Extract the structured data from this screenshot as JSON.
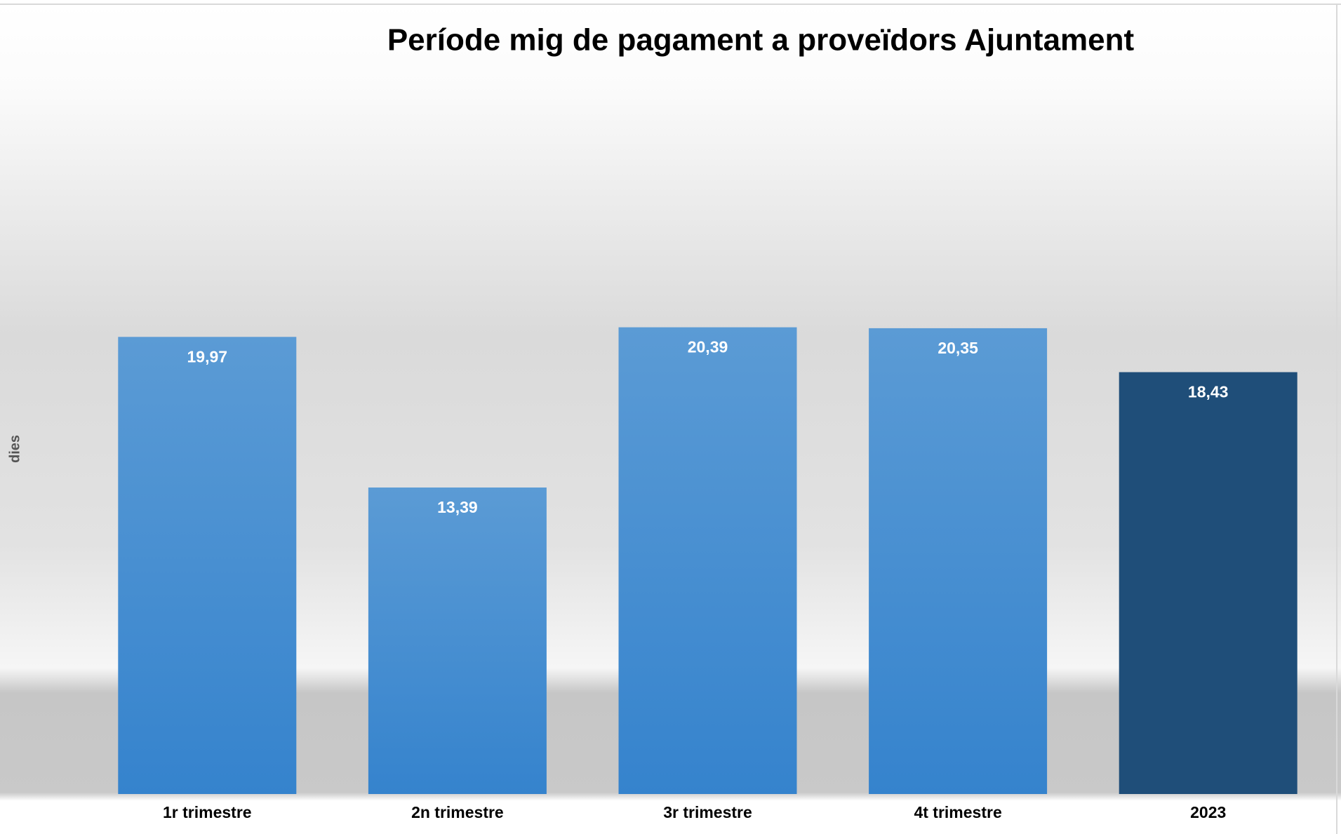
{
  "chart_data": {
    "type": "bar",
    "title": "Període mig de pagament a proveïdors Ajuntament",
    "y_label": "dies",
    "categories": [
      "1r trimestre",
      "2n trimestre",
      "3r trimestre",
      "4t trimestre",
      "2023"
    ],
    "values": [
      19.97,
      13.39,
      20.39,
      20.35,
      18.43
    ],
    "value_labels": [
      "19,97",
      "13,39",
      "20,39",
      "20,35",
      "18,43"
    ],
    "colors": [
      "#4a8fd4",
      "#4a8fd4",
      "#4a8fd4",
      "#4a8fd4",
      "#1f4e79"
    ],
    "ylim": [
      0,
      30
    ],
    "grid": false
  }
}
